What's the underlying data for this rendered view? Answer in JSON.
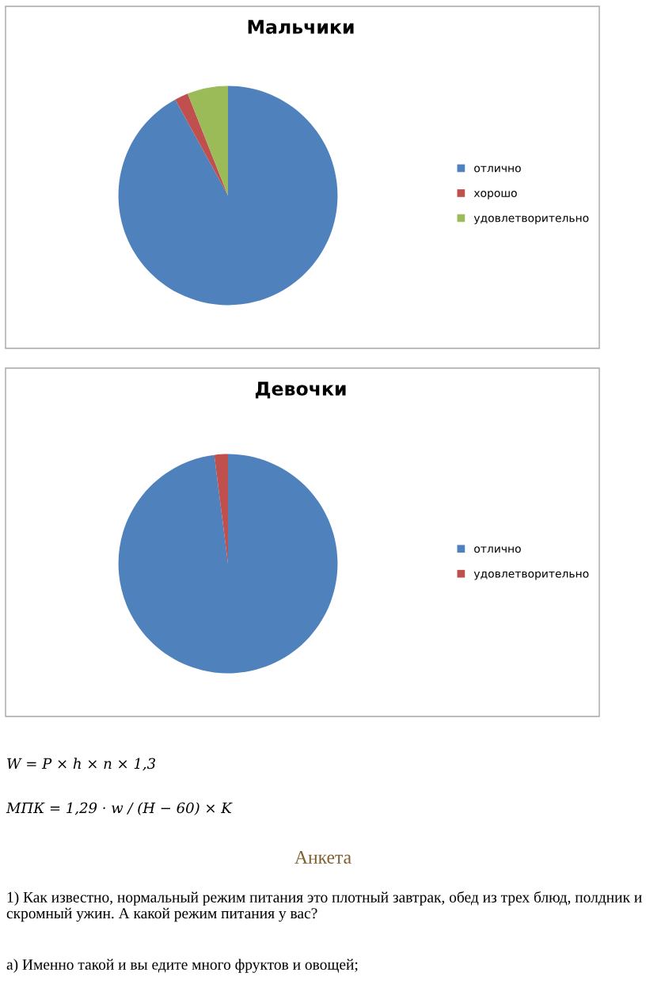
{
  "chart_data": [
    {
      "type": "pie",
      "title": "Мальчики",
      "categories": [
        "отлично",
        "хорошо",
        "удовлетворительно"
      ],
      "values": [
        92,
        2,
        6
      ],
      "colors": [
        "#4f81bd",
        "#c0504d",
        "#9bbb59"
      ],
      "legend": "right"
    },
    {
      "type": "pie",
      "title": "Девочки",
      "categories": [
        "отлично",
        "удовлетворительно"
      ],
      "values": [
        98,
        2
      ],
      "colors": [
        "#4f81bd",
        "#c0504d"
      ],
      "legend": "right",
      "annotations": [
        "W = P × h × n × 1,3",
        "МПК = 1,29 · w / (H − 60) × K",
        "Анкета",
        "1) Как известно, нормальный режим питания это плотный завтрак, обед из трех блюд, полдник и скромный ужин. А какой режим питания у вас?",
        "а) Именно такой и вы едите много фруктов и овощей;"
      ]
    }
  ]
}
